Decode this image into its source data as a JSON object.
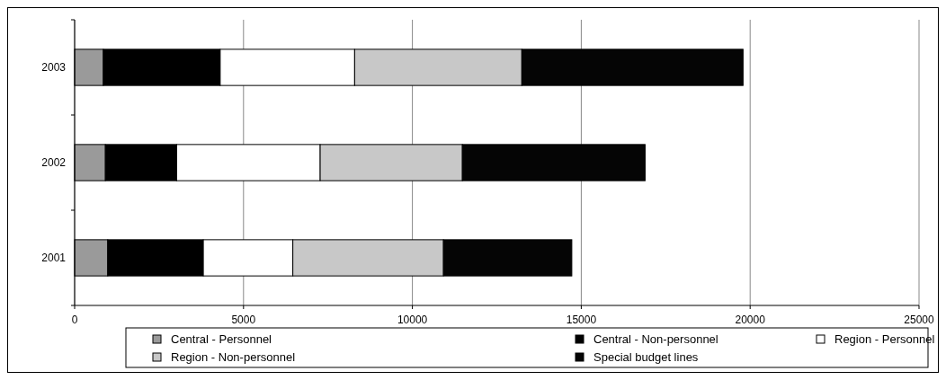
{
  "chart_data": {
    "type": "bar",
    "orientation": "horizontal",
    "stacked": true,
    "categories": [
      "2003",
      "2002",
      "2001"
    ],
    "series": [
      {
        "name": "Central - Personnel",
        "color": "#9a9a9a",
        "values": [
          850,
          910,
          980
        ]
      },
      {
        "name": "Central - Non-personnel",
        "color": "#000000",
        "values": [
          3460,
          2110,
          2830
        ]
      },
      {
        "name": "Region - Personnel",
        "color": "#ffffff",
        "values": [
          3980,
          4250,
          2650
        ]
      },
      {
        "name": "Region - Non-personnel",
        "color": "#c8c8c8",
        "values": [
          4950,
          4210,
          4460
        ]
      },
      {
        "name": "Special budget lines",
        "color": "#050505",
        "values": [
          6550,
          5410,
          3800
        ]
      }
    ],
    "xlim": [
      0,
      25000
    ],
    "xticks": [
      0,
      5000,
      10000,
      15000,
      20000,
      25000
    ],
    "grid": "x",
    "legend": "bottom"
  }
}
